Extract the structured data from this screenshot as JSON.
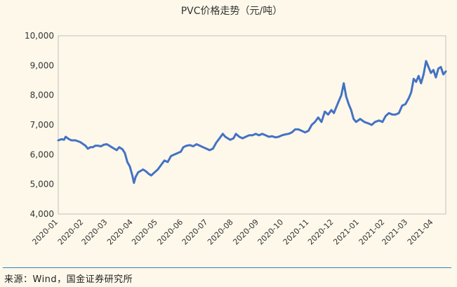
{
  "chart_data": {
    "type": "line",
    "title": "PVC价格走势（元/吨）",
    "xlabel": "",
    "ylabel": "",
    "ylim": [
      4000,
      10000
    ],
    "yticks": [
      4000,
      5000,
      6000,
      7000,
      8000,
      9000,
      10000
    ],
    "ytick_labels": [
      "4,000",
      "5,000",
      "6,000",
      "7,000",
      "8,000",
      "9,000",
      "10,000"
    ],
    "x_tick_labels": [
      "2020-01",
      "2020-02",
      "2020-03",
      "2020-04",
      "2020-05",
      "2020-06",
      "2020-07",
      "2020-08",
      "2020-09",
      "2020-10",
      "2020-11",
      "2020-12",
      "2021-01",
      "2021-02",
      "2021-03",
      "2021-04"
    ],
    "x_range": [
      "2020-01-01",
      "2021-04-16"
    ],
    "grid": false,
    "legend": "none",
    "colors": {
      "line": "#4472c4",
      "axis": "#bfbfbf",
      "background": "#fdf8ea",
      "source_rule": "#3a7fc1"
    },
    "series": [
      {
        "points": [
          [
            "2020-01-01",
            6480
          ],
          [
            "2020-01-05",
            6520
          ],
          [
            "2020-01-08",
            6500
          ],
          [
            "2020-01-10",
            6600
          ],
          [
            "2020-01-14",
            6520
          ],
          [
            "2020-01-17",
            6480
          ],
          [
            "2020-01-22",
            6480
          ],
          [
            "2020-01-28",
            6420
          ],
          [
            "2020-02-03",
            6300
          ],
          [
            "2020-02-06",
            6200
          ],
          [
            "2020-02-09",
            6250
          ],
          [
            "2020-02-12",
            6250
          ],
          [
            "2020-02-15",
            6300
          ],
          [
            "2020-02-18",
            6300
          ],
          [
            "2020-02-22",
            6280
          ],
          [
            "2020-02-25",
            6330
          ],
          [
            "2020-02-29",
            6350
          ],
          [
            "2020-03-03",
            6300
          ],
          [
            "2020-03-06",
            6250
          ],
          [
            "2020-03-09",
            6200
          ],
          [
            "2020-03-12",
            6150
          ],
          [
            "2020-03-15",
            6250
          ],
          [
            "2020-03-19",
            6180
          ],
          [
            "2020-03-22",
            6050
          ],
          [
            "2020-03-25",
            5750
          ],
          [
            "2020-03-28",
            5600
          ],
          [
            "2020-03-31",
            5300
          ],
          [
            "2020-04-02",
            5050
          ],
          [
            "2020-04-04",
            5250
          ],
          [
            "2020-04-07",
            5400
          ],
          [
            "2020-04-10",
            5450
          ],
          [
            "2020-04-13",
            5500
          ],
          [
            "2020-04-16",
            5450
          ],
          [
            "2020-04-20",
            5350
          ],
          [
            "2020-04-23",
            5300
          ],
          [
            "2020-04-27",
            5400
          ],
          [
            "2020-05-01",
            5500
          ],
          [
            "2020-05-05",
            5650
          ],
          [
            "2020-05-09",
            5800
          ],
          [
            "2020-05-13",
            5750
          ],
          [
            "2020-05-17",
            5950
          ],
          [
            "2020-05-21",
            6000
          ],
          [
            "2020-05-25",
            6050
          ],
          [
            "2020-05-29",
            6100
          ],
          [
            "2020-06-01",
            6250
          ],
          [
            "2020-06-05",
            6300
          ],
          [
            "2020-06-09",
            6320
          ],
          [
            "2020-06-13",
            6280
          ],
          [
            "2020-06-17",
            6350
          ],
          [
            "2020-06-21",
            6300
          ],
          [
            "2020-06-25",
            6250
          ],
          [
            "2020-06-29",
            6200
          ],
          [
            "2020-07-03",
            6150
          ],
          [
            "2020-07-07",
            6200
          ],
          [
            "2020-07-11",
            6400
          ],
          [
            "2020-07-15",
            6550
          ],
          [
            "2020-07-19",
            6700
          ],
          [
            "2020-07-22",
            6600
          ],
          [
            "2020-07-25",
            6550
          ],
          [
            "2020-07-28",
            6500
          ],
          [
            "2020-08-01",
            6550
          ],
          [
            "2020-08-04",
            6700
          ],
          [
            "2020-08-08",
            6600
          ],
          [
            "2020-08-12",
            6550
          ],
          [
            "2020-08-16",
            6600
          ],
          [
            "2020-08-20",
            6650
          ],
          [
            "2020-08-24",
            6650
          ],
          [
            "2020-08-28",
            6700
          ],
          [
            "2020-09-01",
            6650
          ],
          [
            "2020-09-05",
            6700
          ],
          [
            "2020-09-09",
            6650
          ],
          [
            "2020-09-13",
            6600
          ],
          [
            "2020-09-17",
            6620
          ],
          [
            "2020-09-21",
            6580
          ],
          [
            "2020-09-25",
            6600
          ],
          [
            "2020-09-29",
            6650
          ],
          [
            "2020-10-03",
            6680
          ],
          [
            "2020-10-07",
            6700
          ],
          [
            "2020-10-11",
            6750
          ],
          [
            "2020-10-15",
            6850
          ],
          [
            "2020-10-19",
            6850
          ],
          [
            "2020-10-23",
            6800
          ],
          [
            "2020-10-27",
            6750
          ],
          [
            "2020-10-31",
            6800
          ],
          [
            "2020-11-04",
            7000
          ],
          [
            "2020-11-08",
            7100
          ],
          [
            "2020-11-12",
            7250
          ],
          [
            "2020-11-16",
            7100
          ],
          [
            "2020-11-20",
            7450
          ],
          [
            "2020-11-24",
            7350
          ],
          [
            "2020-11-28",
            7500
          ],
          [
            "2020-12-01",
            7400
          ],
          [
            "2020-12-04",
            7600
          ],
          [
            "2020-12-07",
            7800
          ],
          [
            "2020-12-10",
            8000
          ],
          [
            "2020-12-13",
            8400
          ],
          [
            "2020-12-16",
            7950
          ],
          [
            "2020-12-19",
            7700
          ],
          [
            "2020-12-22",
            7500
          ],
          [
            "2020-12-25",
            7200
          ],
          [
            "2020-12-28",
            7100
          ],
          [
            "2021-01-02",
            7200
          ],
          [
            "2021-01-07",
            7100
          ],
          [
            "2021-01-12",
            7050
          ],
          [
            "2021-01-16",
            7000
          ],
          [
            "2021-01-20",
            7100
          ],
          [
            "2021-01-25",
            7150
          ],
          [
            "2021-01-29",
            7100
          ],
          [
            "2021-02-02",
            7300
          ],
          [
            "2021-02-06",
            7400
          ],
          [
            "2021-02-10",
            7350
          ],
          [
            "2021-02-14",
            7350
          ],
          [
            "2021-02-18",
            7400
          ],
          [
            "2021-02-22",
            7650
          ],
          [
            "2021-02-26",
            7700
          ],
          [
            "2021-03-02",
            7900
          ],
          [
            "2021-03-05",
            8100
          ],
          [
            "2021-03-08",
            8550
          ],
          [
            "2021-03-11",
            8450
          ],
          [
            "2021-03-14",
            8650
          ],
          [
            "2021-03-17",
            8400
          ],
          [
            "2021-03-20",
            8700
          ],
          [
            "2021-03-23",
            9150
          ],
          [
            "2021-03-26",
            8950
          ],
          [
            "2021-03-29",
            8750
          ],
          [
            "2021-04-01",
            8850
          ],
          [
            "2021-04-04",
            8600
          ],
          [
            "2021-04-07",
            8900
          ],
          [
            "2021-04-10",
            8950
          ],
          [
            "2021-04-13",
            8700
          ],
          [
            "2021-04-16",
            8800
          ]
        ]
      }
    ]
  },
  "footer": {
    "source": "来源：Wind，国金证券研究所"
  }
}
